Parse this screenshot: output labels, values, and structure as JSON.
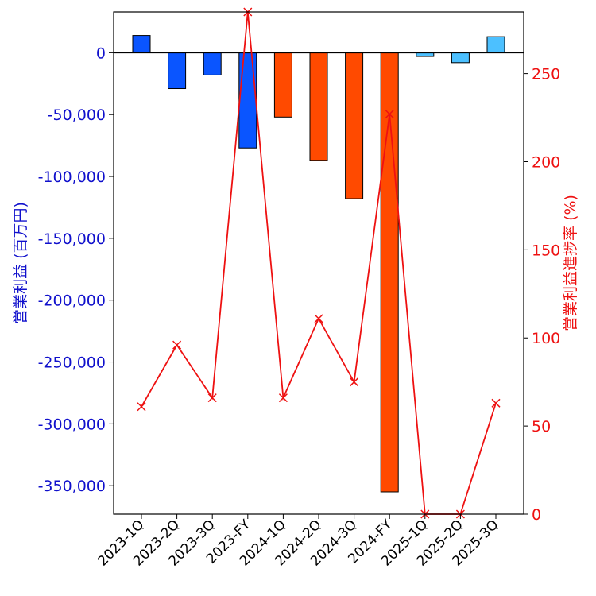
{
  "chart_data": {
    "type": "bar",
    "categories": [
      "2023-1Q",
      "2023-2Q",
      "2023-3Q",
      "2023-FY",
      "2024-1Q",
      "2024-2Q",
      "2024-3Q",
      "2024-FY",
      "2025-1Q",
      "2025-2Q",
      "2025-3Q"
    ],
    "series": [
      {
        "axis": "left",
        "kind": "bar",
        "values": [
          14000,
          -29000,
          -18000,
          -77000,
          -52000,
          -87000,
          -118000,
          -355000,
          -3000,
          -8000,
          13000
        ],
        "colors": [
          "#0a55ff",
          "#0a55ff",
          "#0a55ff",
          "#0a55ff",
          "#ff4a00",
          "#ff4a00",
          "#ff4a00",
          "#ff4a00",
          "#4cc0ff",
          "#4cc0ff",
          "#4cc0ff"
        ]
      },
      {
        "axis": "right",
        "kind": "line",
        "color": "#ee1111",
        "marker": "x",
        "values": [
          61,
          96,
          66,
          285,
          66,
          111,
          75,
          227,
          0,
          0,
          63
        ]
      }
    ],
    "ylabel": "営業利益 (百万円)",
    "y2label": "営業利益進捗率 (%)",
    "ylim": [
      -373000,
      33000
    ],
    "y2lim": [
      0,
      285
    ],
    "yticks": [
      0,
      -50000,
      -100000,
      -150000,
      -200000,
      -250000,
      -300000,
      -350000
    ],
    "yticklabels": [
      "0",
      "-50,000",
      "-100,000",
      "-150,000",
      "-200,000",
      "-250,000",
      "-300,000",
      "-350,000"
    ],
    "y2ticks": [
      0,
      50,
      100,
      150,
      200,
      250
    ],
    "y2ticklabels": [
      "0",
      "50",
      "100",
      "150",
      "200",
      "250"
    ],
    "grid": false,
    "colors": {
      "left_axis": "#1010cc",
      "right_axis": "#ee1111"
    }
  }
}
